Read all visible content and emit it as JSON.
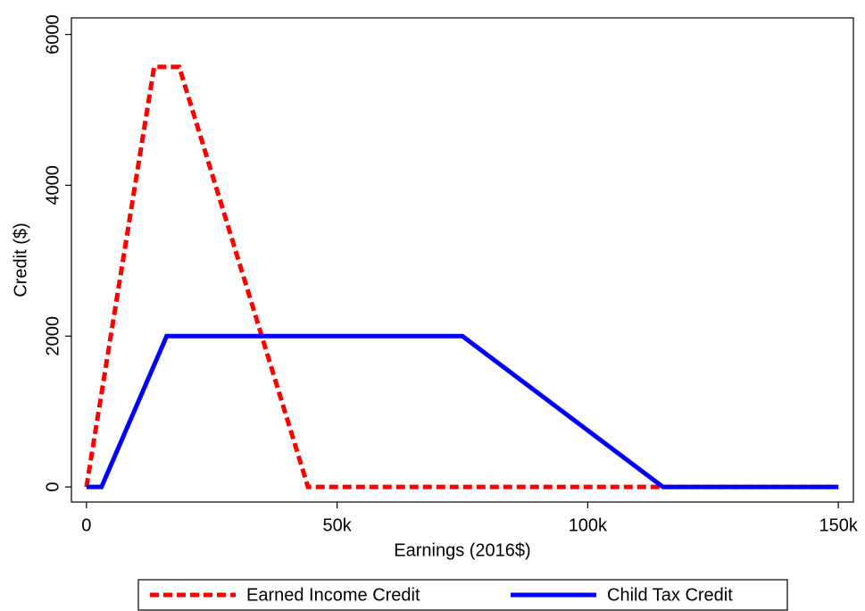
{
  "chart_data": {
    "type": "line",
    "x_label": "Earnings (2016$)",
    "y_label": "Credit ($)",
    "series": [
      {
        "name": "Earned Income Credit",
        "color": "#ff0000",
        "dash": true,
        "x": [
          0,
          13500,
          18500,
          44200,
          150000
        ],
        "values": [
          0,
          5570,
          5570,
          0,
          0
        ]
      },
      {
        "name": "Child Tax Credit",
        "color": "#0000ff",
        "dash": false,
        "x": [
          0,
          3000,
          16000,
          75000,
          115000,
          150000
        ],
        "values": [
          0,
          0,
          2000,
          2000,
          0,
          0
        ]
      }
    ],
    "xlim": [
      -3000,
      153000
    ],
    "ylim": [
      -200,
      6220
    ],
    "xticks": [
      0,
      {
        "value": 50000,
        "label": "50k"
      },
      {
        "value": 100000,
        "label": "100k"
      },
      {
        "value": 150000,
        "label": "150k"
      }
    ],
    "yticks": [
      0,
      2000,
      4000,
      6000
    ]
  }
}
